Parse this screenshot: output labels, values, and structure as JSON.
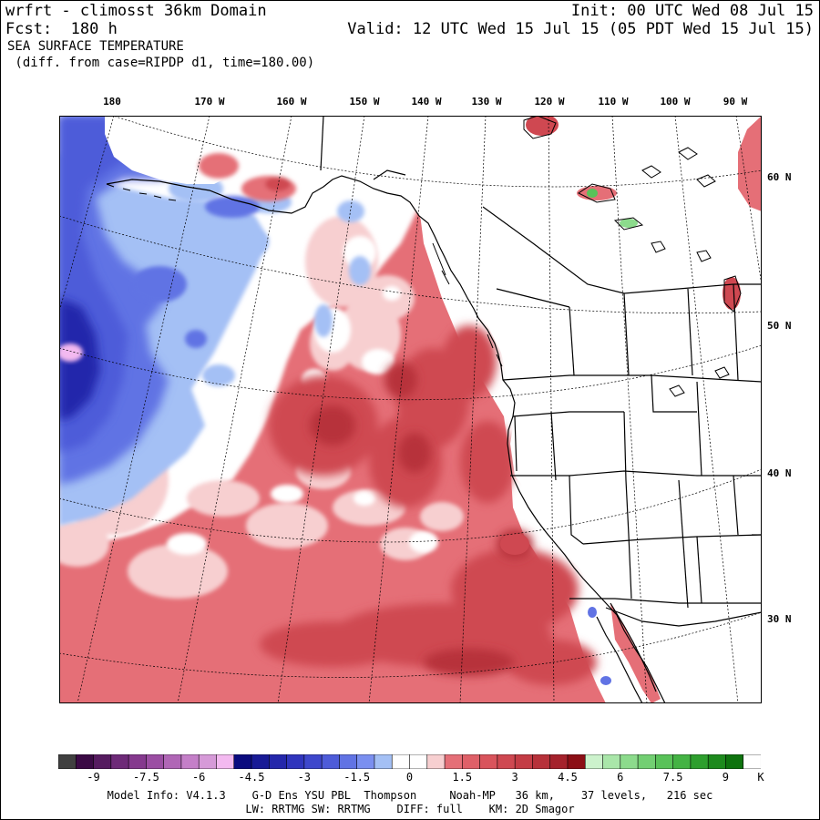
{
  "header": {
    "title": "wrfrt - climosst 36km Domain",
    "init": "Init: 00 UTC Wed 08 Jul 15",
    "fcst": "Fcst:  180 h",
    "valid": "Valid: 12 UTC Wed 15 Jul 15 (05 PDT Wed 15 Jul 15)",
    "field": "SEA SURFACE TEMPERATURE",
    "subfield": " (diff. from case=RIPDP d1, time=180.00)"
  },
  "lon_labels": [
    "180",
    "170 W",
    "160 W",
    "150 W",
    "140 W",
    "130 W",
    "120 W",
    "110 W",
    "100 W",
    "90 W"
  ],
  "lat_labels": [
    "60 N",
    "50 N",
    "40 N",
    "30 N"
  ],
  "colorbar": {
    "colors": [
      "#404040",
      "#3b0a45",
      "#561b60",
      "#6e2a78",
      "#85398e",
      "#9b4ea3",
      "#b066b6",
      "#c47fc8",
      "#d69ad8",
      "#f3b9f0",
      "#0b0b7f",
      "#181a96",
      "#2427ab",
      "#3035bd",
      "#3e47cc",
      "#4e5cd9",
      "#6173e4",
      "#7a8ff0",
      "#a4c0f5",
      "#ffffff",
      "#ffffff",
      "#f7cfd0",
      "#e56f77",
      "#df6068",
      "#d9545c",
      "#cf4851",
      "#c43c45",
      "#b7313a",
      "#a5222c",
      "#8c0f16",
      "#ccf2cc",
      "#a9e6a9",
      "#8cdb8c",
      "#72cf72",
      "#59c259",
      "#44b344",
      "#2e9f2e",
      "#1d8a1d",
      "#0e730e",
      "#ffffff"
    ],
    "tick_labels": [
      "-9",
      "-7.5",
      "-6",
      "-4.5",
      "-3",
      "-1.5",
      "0",
      "1.5",
      "3",
      "4.5",
      "6",
      "7.5",
      "9",
      "K"
    ]
  },
  "footer": {
    "line1": "Model Info: V4.1.3    G-D Ens YSU PBL  Thompson     Noah-MP   36 km,    37 levels,   216 sec",
    "line2": "LW: RRTMG SW: RRTMG    DIFF: full    KM: 2D Smagor"
  }
}
